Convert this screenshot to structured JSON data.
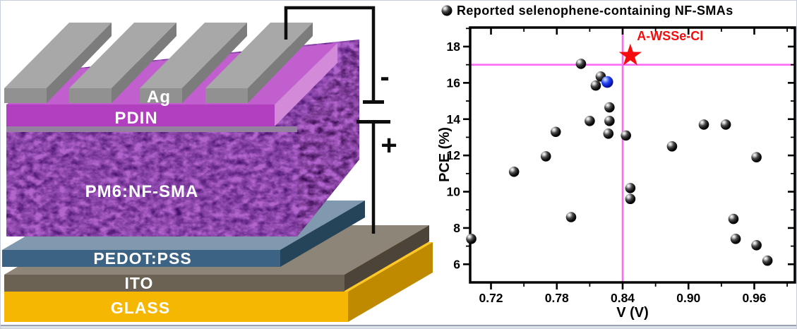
{
  "figure": {
    "background": "#ffffff",
    "border_color": "#c7cdd9",
    "bottom_rule_color": "#99a3b1"
  },
  "device": {
    "labels": {
      "ag": "Ag",
      "pdin": "PDIN",
      "active": "PM6:NF-SMA",
      "pedot": "PEDOT:PSS",
      "ito": "ITO",
      "glass": "GLASS",
      "negative": "-",
      "positive": "+"
    },
    "colors": {
      "ag_top": "#a8a8a8",
      "ag_front": "#919191",
      "ag_side": "#7c7c7c",
      "pdin_top": "#c25fce",
      "pdin_front": "#b23fc0",
      "pdin_side": "#d28ad9",
      "active_base": "#45106b",
      "active_side": "#36084e",
      "active_strip": "#94809f",
      "pedot_top": "#8099af",
      "pedot_front": "#3d6384",
      "pedot_side": "#254459",
      "ito_top": "#8d8577",
      "ito_front": "#6c6254",
      "ito_side": "#4c4438",
      "glass_top": "#ffc723",
      "glass_front": "#f6b703",
      "glass_side": "#c08a00",
      "wire": "#0d0d0d",
      "label_text": "#ffffff"
    }
  },
  "chart_data": {
    "type": "scatter",
    "legend": {
      "marker": "black-sphere",
      "label": "Reported selenophene-containing NF-SMAs"
    },
    "xlabel": "V (V)",
    "ylabel": "PCE (%)",
    "xlim": [
      0.701,
      0.997
    ],
    "ylim": [
      5.0,
      19.05
    ],
    "x_ticks": [
      0.72,
      0.78,
      0.84,
      0.9,
      0.96
    ],
    "x_minor_ticks": [
      0.75,
      0.81,
      0.87,
      0.93,
      0.99
    ],
    "y_ticks": [
      6,
      8,
      10,
      12,
      14,
      16,
      18
    ],
    "y_minor_ticks": [
      7,
      9,
      11,
      13,
      15,
      17,
      19
    ],
    "grid": false,
    "legend_position": "top",
    "series": [
      {
        "name": "Reported selenophene-containing NF-SMAs",
        "marker": "sphere",
        "color": "#111111",
        "points": [
          [
            0.702,
            7.4
          ],
          [
            0.741,
            11.1
          ],
          [
            0.77,
            11.95
          ],
          [
            0.779,
            13.3
          ],
          [
            0.793,
            8.6
          ],
          [
            0.802,
            17.05
          ],
          [
            0.82,
            16.35
          ],
          [
            0.8155,
            15.85
          ],
          [
            0.81,
            13.9
          ],
          [
            0.828,
            14.65
          ],
          [
            0.828,
            13.9
          ],
          [
            0.827,
            13.2
          ],
          [
            0.843,
            13.1
          ],
          [
            0.847,
            10.2
          ],
          [
            0.847,
            9.6
          ],
          [
            0.885,
            12.5
          ],
          [
            0.914,
            13.7
          ],
          [
            0.934,
            13.7
          ],
          [
            0.941,
            8.5
          ],
          [
            0.943,
            7.4
          ],
          [
            0.962,
            11.9
          ],
          [
            0.962,
            7.05
          ],
          [
            0.972,
            6.2
          ]
        ]
      }
    ],
    "highlight_point": {
      "marker": "blue-sphere",
      "color": "#2238ee",
      "v": 0.826,
      "pce": 16.05
    },
    "star_point": {
      "label": "A-WSSe-Cl",
      "color": "#f60c0c",
      "v": 0.847,
      "pce": 17.5
    },
    "annotation": {
      "text": "A-WSSe-Cl",
      "color": "#f60c0c",
      "v": 0.853,
      "pce": 18.35
    },
    "crosshair": {
      "v": 0.84,
      "pce": 17.0,
      "color": "#ff6cf3"
    }
  }
}
